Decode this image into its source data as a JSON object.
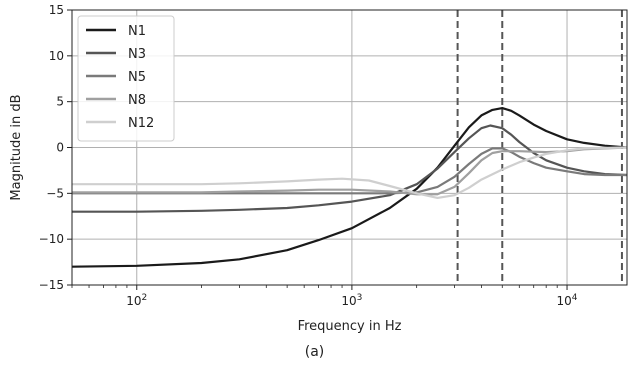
{
  "caption": "(a)",
  "chart_data": {
    "type": "line",
    "title": "",
    "xlabel": "Frequency in Hz",
    "ylabel": "Magnitude in dB",
    "xscale": "log",
    "xlim": [
      50,
      19000
    ],
    "ylim": [
      -15,
      15
    ],
    "xticks": [
      {
        "value": 100,
        "label": "10",
        "exp": "2"
      },
      {
        "value": 1000,
        "label": "10",
        "exp": "3"
      },
      {
        "value": 10000,
        "label": "10",
        "exp": "4"
      }
    ],
    "yticks": [
      -15,
      -10,
      -5,
      0,
      5,
      10,
      15
    ],
    "grid": true,
    "legend": "top-left",
    "vlines": [
      3100,
      5000,
      18000
    ],
    "series": [
      {
        "name": "N1",
        "color": "#1a1a1a",
        "points": [
          [
            50,
            -13.0
          ],
          [
            100,
            -12.9
          ],
          [
            200,
            -12.6
          ],
          [
            300,
            -12.2
          ],
          [
            500,
            -11.2
          ],
          [
            700,
            -10.1
          ],
          [
            1000,
            -8.8
          ],
          [
            1500,
            -6.6
          ],
          [
            2000,
            -4.5
          ],
          [
            2500,
            -2.2
          ],
          [
            3000,
            0.2
          ],
          [
            3500,
            2.2
          ],
          [
            4000,
            3.5
          ],
          [
            4500,
            4.1
          ],
          [
            5000,
            4.3
          ],
          [
            5500,
            4.0
          ],
          [
            6000,
            3.5
          ],
          [
            7000,
            2.5
          ],
          [
            8000,
            1.8
          ],
          [
            10000,
            0.9
          ],
          [
            12000,
            0.5
          ],
          [
            15000,
            0.2
          ],
          [
            19000,
            0.0
          ]
        ]
      },
      {
        "name": "N3",
        "color": "#555555",
        "points": [
          [
            50,
            -7.0
          ],
          [
            100,
            -7.0
          ],
          [
            200,
            -6.9
          ],
          [
            300,
            -6.8
          ],
          [
            500,
            -6.6
          ],
          [
            700,
            -6.3
          ],
          [
            1000,
            -5.9
          ],
          [
            1500,
            -5.2
          ],
          [
            2000,
            -4.0
          ],
          [
            2500,
            -2.3
          ],
          [
            3000,
            -0.5
          ],
          [
            3500,
            1.0
          ],
          [
            4000,
            2.1
          ],
          [
            4400,
            2.4
          ],
          [
            5000,
            2.1
          ],
          [
            5500,
            1.4
          ],
          [
            6000,
            0.6
          ],
          [
            7000,
            -0.6
          ],
          [
            8000,
            -1.4
          ],
          [
            10000,
            -2.2
          ],
          [
            12000,
            -2.6
          ],
          [
            15000,
            -2.9
          ],
          [
            19000,
            -3.0
          ]
        ]
      },
      {
        "name": "N5",
        "color": "#7a7a7a",
        "points": [
          [
            50,
            -5.0
          ],
          [
            100,
            -5.0
          ],
          [
            200,
            -5.0
          ],
          [
            300,
            -5.0
          ],
          [
            500,
            -5.0
          ],
          [
            700,
            -5.0
          ],
          [
            1000,
            -5.0
          ],
          [
            1500,
            -5.0
          ],
          [
            2000,
            -4.9
          ],
          [
            2500,
            -4.3
          ],
          [
            3000,
            -3.2
          ],
          [
            3500,
            -1.8
          ],
          [
            4000,
            -0.7
          ],
          [
            4500,
            -0.1
          ],
          [
            5000,
            -0.1
          ],
          [
            5500,
            -0.5
          ],
          [
            6000,
            -1.0
          ],
          [
            7000,
            -1.7
          ],
          [
            8000,
            -2.2
          ],
          [
            10000,
            -2.6
          ],
          [
            12000,
            -2.9
          ],
          [
            15000,
            -3.0
          ],
          [
            19000,
            -3.0
          ]
        ]
      },
      {
        "name": "N8",
        "color": "#a0a0a0",
        "points": [
          [
            50,
            -4.9
          ],
          [
            100,
            -4.9
          ],
          [
            200,
            -4.9
          ],
          [
            300,
            -4.8
          ],
          [
            500,
            -4.7
          ],
          [
            700,
            -4.6
          ],
          [
            1000,
            -4.6
          ],
          [
            1500,
            -4.8
          ],
          [
            2000,
            -5.1
          ],
          [
            2500,
            -5.1
          ],
          [
            3000,
            -4.3
          ],
          [
            3500,
            -2.8
          ],
          [
            4000,
            -1.4
          ],
          [
            4500,
            -0.6
          ],
          [
            5000,
            -0.4
          ],
          [
            6000,
            -0.4
          ],
          [
            8000,
            -0.5
          ],
          [
            10000,
            -0.4
          ],
          [
            12000,
            -0.2
          ],
          [
            15000,
            -0.1
          ],
          [
            19000,
            0.0
          ]
        ]
      },
      {
        "name": "N12",
        "color": "#cfcfcf",
        "points": [
          [
            50,
            -4.0
          ],
          [
            100,
            -4.0
          ],
          [
            200,
            -4.0
          ],
          [
            300,
            -3.9
          ],
          [
            500,
            -3.7
          ],
          [
            700,
            -3.5
          ],
          [
            900,
            -3.4
          ],
          [
            1200,
            -3.6
          ],
          [
            1500,
            -4.2
          ],
          [
            2000,
            -5.0
          ],
          [
            2500,
            -5.5
          ],
          [
            3000,
            -5.2
          ],
          [
            3500,
            -4.4
          ],
          [
            4000,
            -3.5
          ],
          [
            5000,
            -2.4
          ],
          [
            6000,
            -1.6
          ],
          [
            7000,
            -1.1
          ],
          [
            8000,
            -0.7
          ],
          [
            10000,
            -0.3
          ],
          [
            12000,
            -0.1
          ],
          [
            19000,
            0.0
          ]
        ]
      }
    ]
  }
}
